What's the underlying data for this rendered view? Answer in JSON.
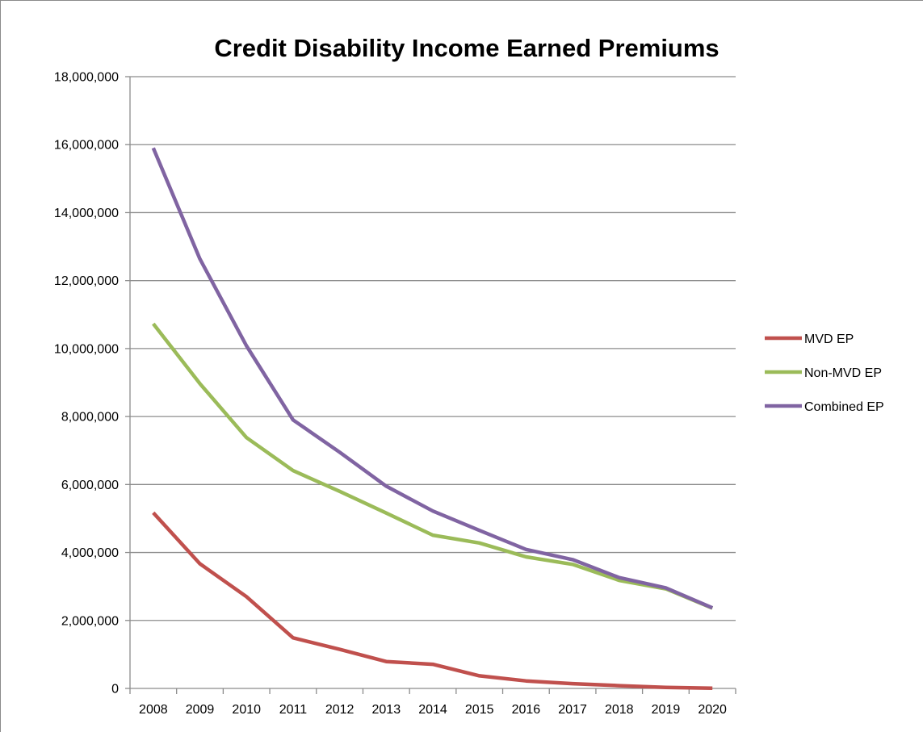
{
  "chart_data": {
    "type": "line",
    "title": "Credit Disability Income Earned Premiums",
    "xlabel": "",
    "ylabel": "",
    "categories": [
      "2008",
      "2009",
      "2010",
      "2011",
      "2012",
      "2013",
      "2014",
      "2015",
      "2016",
      "2017",
      "2018",
      "2019",
      "2020"
    ],
    "ylim": [
      0,
      18000000
    ],
    "yticks": [
      0,
      2000000,
      4000000,
      6000000,
      8000000,
      10000000,
      12000000,
      14000000,
      16000000,
      18000000
    ],
    "ytick_labels": [
      "0",
      "2,000,000",
      "4,000,000",
      "6,000,000",
      "8,000,000",
      "10,000,000",
      "12,000,000",
      "14,000,000",
      "16,000,000",
      "18,000,000"
    ],
    "grid": "horizontal",
    "legend": "right",
    "series": [
      {
        "name": "MVD EP",
        "color": "#C0504D",
        "values": [
          5170000,
          3670000,
          2700000,
          1490000,
          1150000,
          790000,
          710000,
          370000,
          220000,
          140000,
          80000,
          30000,
          5000
        ]
      },
      {
        "name": "Non-MVD EP",
        "color": "#9BBB59",
        "values": [
          10730000,
          8970000,
          7380000,
          6410000,
          5800000,
          5160000,
          4510000,
          4280000,
          3870000,
          3650000,
          3180000,
          2930000,
          2360000
        ]
      },
      {
        "name": "Combined EP",
        "color": "#8064A2",
        "values": [
          15900000,
          12640000,
          10080000,
          7900000,
          6950000,
          5950000,
          5220000,
          4650000,
          4090000,
          3790000,
          3260000,
          2960000,
          2370000
        ]
      }
    ]
  }
}
